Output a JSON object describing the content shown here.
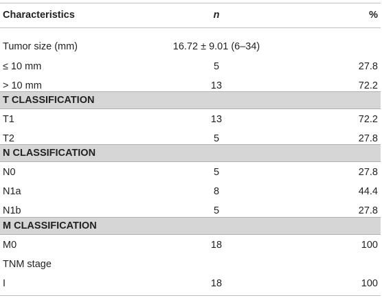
{
  "header": {
    "characteristics": "Characteristics",
    "n": "n",
    "percent": "%"
  },
  "rows": {
    "tumor_size": {
      "label": "Tumor size (mm)",
      "n": "16.72 ± 9.01 (6–34)",
      "pct": ""
    },
    "le10": {
      "label": "≤ 10 mm",
      "n": "5",
      "pct": "27.8"
    },
    "gt10": {
      "label": "> 10 mm",
      "n": "13",
      "pct": "72.2"
    },
    "t_class": {
      "label": "T CLASSIFICATION"
    },
    "t1": {
      "label": "T1",
      "n": "13",
      "pct": "72.2"
    },
    "t2": {
      "label": "T2",
      "n": "5",
      "pct": "27.8"
    },
    "n_class": {
      "label": "N CLASSIFICATION"
    },
    "n0": {
      "label": "N0",
      "n": "5",
      "pct": "27.8"
    },
    "n1a": {
      "label": "N1a",
      "n": "8",
      "pct": "44.4"
    },
    "n1b": {
      "label": "N1b",
      "n": "5",
      "pct": "27.8"
    },
    "m_class": {
      "label": "M CLASSIFICATION"
    },
    "m0": {
      "label": "M0",
      "n": "18",
      "pct": "100"
    },
    "tnm": {
      "label": "TNM stage",
      "n": "",
      "pct": ""
    },
    "stage1": {
      "label": "I",
      "n": "18",
      "pct": "100"
    }
  }
}
